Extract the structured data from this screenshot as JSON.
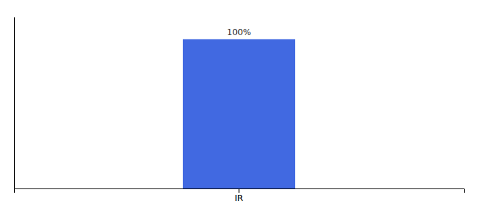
{
  "chart_data": {
    "type": "bar",
    "categories": [
      "IR"
    ],
    "values": [
      100
    ],
    "value_labels": [
      "100%"
    ],
    "color": "#4169e1",
    "ylim": [
      0,
      115
    ],
    "data_labels": true,
    "tick_labels": "x"
  }
}
